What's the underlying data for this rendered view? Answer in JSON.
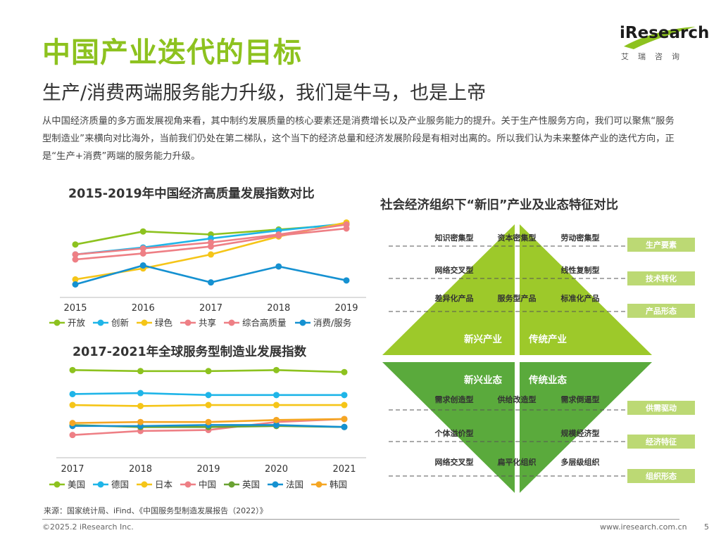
{
  "header": {
    "title": "中国产业迭代的目标",
    "subtitle": "生产/消费两端服务能力升级，我们是牛马，也是上帝",
    "intro": "从中国经济质量的多方面发展视角来看，其中制约发展质量的核心要素还是消费增长以及产业服务能力的提升。关于生产性服务方向，我们可以聚焦“服务型制造业”来横向对比海外，当前我们仍处在第二梯队，这个当下的经济总量和经济发展阶段是有相对出离的。所以我们认为未来整体产业的迭代方向，正是“生产+消费”两端的服务能力升级。"
  },
  "logo": {
    "brand": "iResearch",
    "sub": "艾瑞咨询",
    "accent": "#8dc21f"
  },
  "chart_data": [
    {
      "type": "line",
      "title": "2015-2019年中国经济高质量发展指数对比",
      "x": [
        "2015",
        "2016",
        "2017",
        "2018",
        "2019"
      ],
      "ylim": [
        0,
        100
      ],
      "grid": false,
      "legend_position": "bottom",
      "series": [
        {
          "name": "开放",
          "color": "#8dc21f",
          "values": [
            65,
            78,
            75,
            80,
            85
          ]
        },
        {
          "name": "创新",
          "color": "#1fb5e8",
          "values": [
            55,
            62,
            71,
            79,
            86
          ]
        },
        {
          "name": "绿色",
          "color": "#f5c518",
          "values": [
            30,
            41,
            55,
            73,
            87
          ]
        },
        {
          "name": "共享",
          "color": "#ee7f85",
          "values": [
            50,
            56,
            63,
            74,
            81
          ]
        },
        {
          "name": "综合高质量",
          "color": "#ee7f85",
          "values": [
            55,
            61,
            67,
            75,
            85
          ]
        },
        {
          "name": "消费/服务",
          "color": "#1591d1",
          "values": [
            25,
            44,
            27,
            43,
            29
          ]
        }
      ]
    },
    {
      "type": "line",
      "title": "2017-2021年全球服务型制造业发展指数",
      "x": [
        "2017",
        "2018",
        "2019",
        "2020",
        "2021"
      ],
      "ylim": [
        0,
        100
      ],
      "grid": false,
      "legend_position": "bottom",
      "series": [
        {
          "name": "美国",
          "color": "#8dc21f",
          "values": [
            92,
            91,
            91,
            92,
            90
          ]
        },
        {
          "name": "德国",
          "color": "#1fb5e8",
          "values": [
            68,
            69,
            67,
            67,
            67
          ]
        },
        {
          "name": "日本",
          "color": "#f5c518",
          "values": [
            57,
            56,
            57,
            57,
            57
          ]
        },
        {
          "name": "中国",
          "color": "#ee7f85",
          "values": [
            27,
            31,
            32,
            40,
            43
          ]
        },
        {
          "name": "英国",
          "color": "#6aa232",
          "values": [
            37,
            35,
            35,
            36,
            35
          ]
        },
        {
          "name": "法国",
          "color": "#1591d1",
          "values": [
            36,
            36,
            37,
            37,
            35
          ]
        },
        {
          "name": "韩国",
          "color": "#f5a623",
          "values": [
            39,
            40,
            40,
            42,
            43
          ]
        }
      ]
    }
  ],
  "diagram": {
    "title": "社会经济组织下“新旧”产业及业态特征对比",
    "colors": {
      "top": "#9dc92a",
      "bottom": "#5aaa3c",
      "side_label_bg": "#bcd974"
    },
    "top_left_label": "新兴产业",
    "top_right_label": "传统产业",
    "bottom_left_label": "新兴业态",
    "bottom_right_label": "传统业态",
    "top_items": [
      [
        "知识密集型",
        "资本密集型",
        "劳动密集型"
      ],
      [
        "网络交叉型",
        "线性复制型"
      ],
      [
        "差异化产品",
        "服务型产品",
        "标准化产品"
      ]
    ],
    "bottom_items": [
      [
        "需求创造型",
        "供给改造型",
        "需求倒逼型"
      ],
      [
        "个体溢价型",
        "规模经济型"
      ],
      [
        "网络交叉型",
        "扁平化组织",
        "多层级组织"
      ]
    ],
    "side_labels_top": [
      "生产要素",
      "技术转化",
      "产品形态"
    ],
    "side_labels_bottom": [
      "供需驱动",
      "经济特征",
      "组织形态"
    ]
  },
  "footer": {
    "source": "来源：国家统计局、iFind、《中国服务型制造发展报告（2022）》",
    "copyright": "©2025.2 iResearch Inc.",
    "website": "www.iresearch.com.cn",
    "page_number": "5"
  }
}
